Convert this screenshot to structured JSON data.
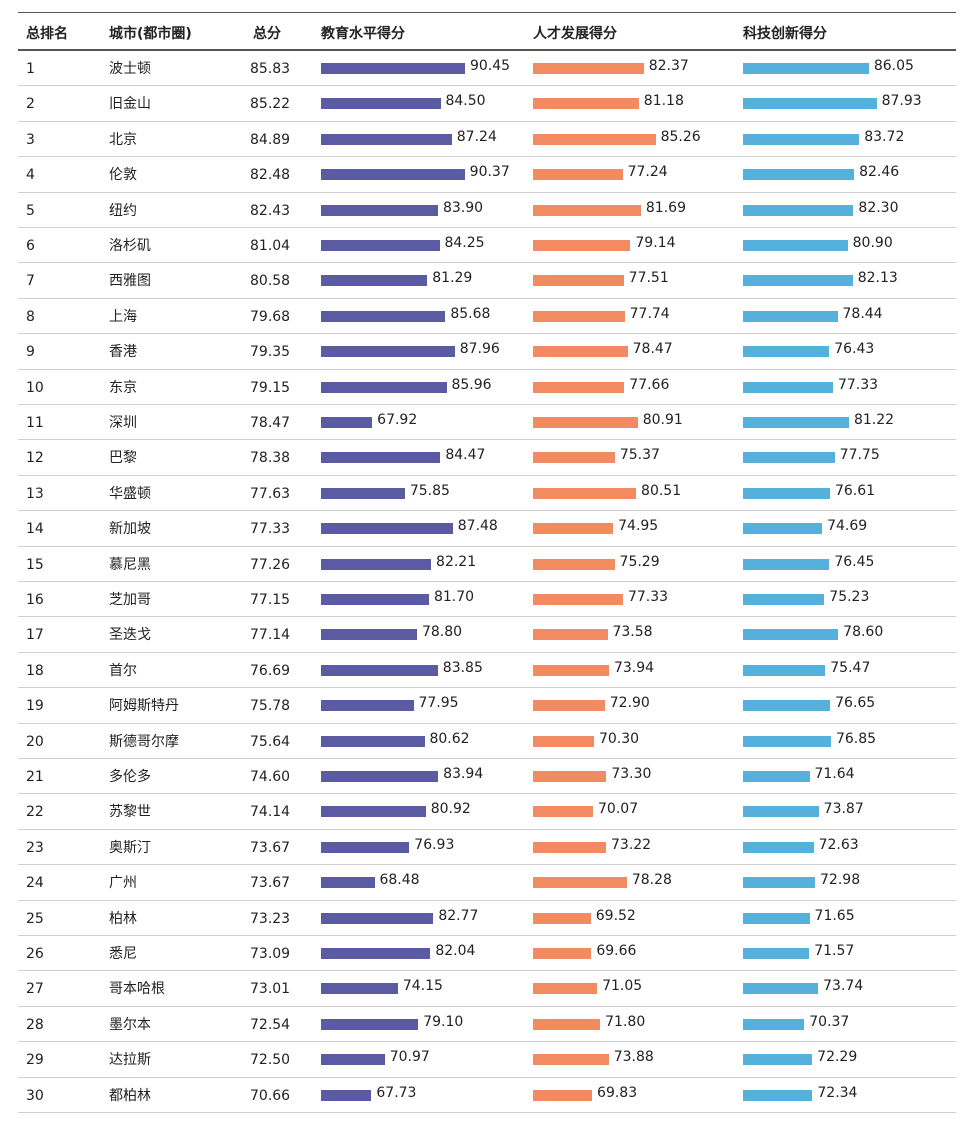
{
  "chart_data": {
    "type": "table",
    "columns": [
      "总排名",
      "城市(都市圈)",
      "总分",
      "教育水平得分",
      "人才发展得分",
      "科技创新得分"
    ],
    "colors": {
      "edu": "#5b5ba3",
      "talent": "#f28a62",
      "tech": "#56b0dc"
    },
    "bar_scale": [
      50,
      100
    ],
    "rows": [
      {
        "rank": "1",
        "city": "波士顿",
        "total": "85.83",
        "edu": 90.45,
        "talent": 82.37,
        "tech": 86.05
      },
      {
        "rank": "2",
        "city": "旧金山",
        "total": "85.22",
        "edu": 84.5,
        "talent": 81.18,
        "tech": 87.93
      },
      {
        "rank": "3",
        "city": "北京",
        "total": "84.89",
        "edu": 87.24,
        "talent": 85.26,
        "tech": 83.72
      },
      {
        "rank": "4",
        "city": "伦敦",
        "total": "82.48",
        "edu": 90.37,
        "talent": 77.24,
        "tech": 82.46
      },
      {
        "rank": "5",
        "city": "纽约",
        "total": "82.43",
        "edu": 83.9,
        "talent": 81.69,
        "tech": 82.3
      },
      {
        "rank": "6",
        "city": "洛杉矶",
        "total": "81.04",
        "edu": 84.25,
        "talent": 79.14,
        "tech": 80.9
      },
      {
        "rank": "7",
        "city": "西雅图",
        "total": "80.58",
        "edu": 81.29,
        "talent": 77.51,
        "tech": 82.13
      },
      {
        "rank": "8",
        "city": "上海",
        "total": "79.68",
        "edu": 85.68,
        "talent": 77.74,
        "tech": 78.44
      },
      {
        "rank": "9",
        "city": "香港",
        "total": "79.35",
        "edu": 87.96,
        "talent": 78.47,
        "tech": 76.43
      },
      {
        "rank": "10",
        "city": "东京",
        "total": "79.15",
        "edu": 85.96,
        "talent": 77.66,
        "tech": 77.33
      },
      {
        "rank": "11",
        "city": "深圳",
        "total": "78.47",
        "edu": 67.92,
        "talent": 80.91,
        "tech": 81.22
      },
      {
        "rank": "12",
        "city": "巴黎",
        "total": "78.38",
        "edu": 84.47,
        "talent": 75.37,
        "tech": 77.75
      },
      {
        "rank": "13",
        "city": "华盛顿",
        "total": "77.63",
        "edu": 75.85,
        "talent": 80.51,
        "tech": 76.61
      },
      {
        "rank": "14",
        "city": "新加坡",
        "total": "77.33",
        "edu": 87.48,
        "talent": 74.95,
        "tech": 74.69
      },
      {
        "rank": "15",
        "city": "慕尼黑",
        "total": "77.26",
        "edu": 82.21,
        "talent": 75.29,
        "tech": 76.45
      },
      {
        "rank": "16",
        "city": "芝加哥",
        "total": "77.15",
        "edu": 81.7,
        "talent": 77.33,
        "tech": 75.23
      },
      {
        "rank": "17",
        "city": "圣迭戈",
        "total": "77.14",
        "edu": 78.8,
        "talent": 73.58,
        "tech": 78.6
      },
      {
        "rank": "18",
        "city": "首尔",
        "total": "76.69",
        "edu": 83.85,
        "talent": 73.94,
        "tech": 75.47
      },
      {
        "rank": "19",
        "city": "阿姆斯特丹",
        "total": "75.78",
        "edu": 77.95,
        "talent": 72.9,
        "tech": 76.65
      },
      {
        "rank": "20",
        "city": "斯德哥尔摩",
        "total": "75.64",
        "edu": 80.62,
        "talent": 70.3,
        "tech": 76.85
      },
      {
        "rank": "21",
        "city": "多伦多",
        "total": "74.60",
        "edu": 83.94,
        "talent": 73.3,
        "tech": 71.64
      },
      {
        "rank": "22",
        "city": "苏黎世",
        "total": "74.14",
        "edu": 80.92,
        "talent": 70.07,
        "tech": 73.87
      },
      {
        "rank": "23",
        "city": "奥斯汀",
        "total": "73.67",
        "edu": 76.93,
        "talent": 73.22,
        "tech": 72.63
      },
      {
        "rank": "24",
        "city": "广州",
        "total": "73.67",
        "edu": 68.48,
        "talent": 78.28,
        "tech": 72.98
      },
      {
        "rank": "25",
        "city": "柏林",
        "total": "73.23",
        "edu": 82.77,
        "talent": 69.52,
        "tech": 71.65
      },
      {
        "rank": "26",
        "city": "悉尼",
        "total": "73.09",
        "edu": 82.04,
        "talent": 69.66,
        "tech": 71.57
      },
      {
        "rank": "27",
        "city": "哥本哈根",
        "total": "73.01",
        "edu": 74.15,
        "talent": 71.05,
        "tech": 73.74
      },
      {
        "rank": "28",
        "city": "墨尔本",
        "total": "72.54",
        "edu": 79.1,
        "talent": 71.8,
        "tech": 70.37
      },
      {
        "rank": "29",
        "city": "达拉斯",
        "total": "72.50",
        "edu": 70.97,
        "talent": 73.88,
        "tech": 72.29
      },
      {
        "rank": "30",
        "city": "都柏林",
        "total": "70.66",
        "edu": 67.73,
        "talent": 69.83,
        "tech": 72.34
      }
    ]
  }
}
